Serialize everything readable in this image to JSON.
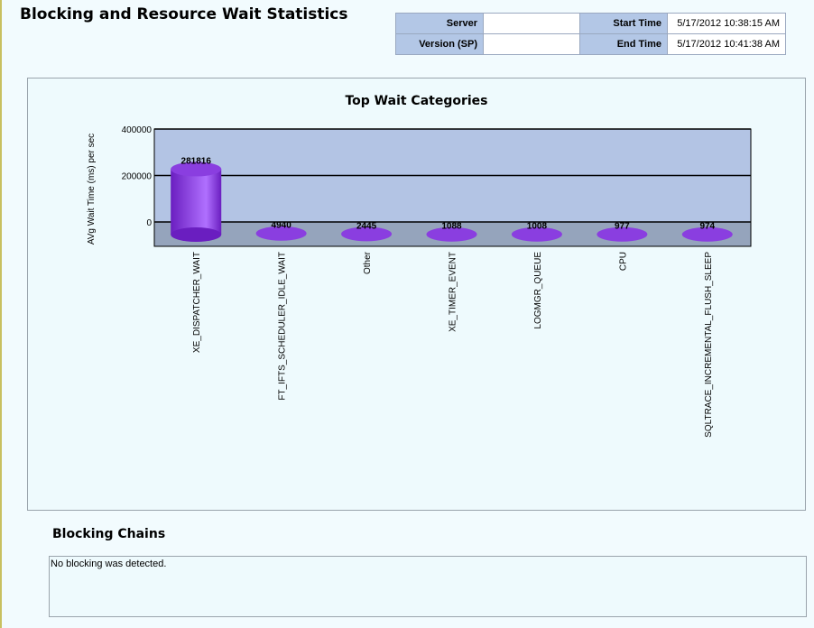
{
  "report": {
    "title": "Blocking and Resource Wait Statistics"
  },
  "info_table": {
    "server_label": "Server",
    "server_value": "",
    "version_label": "Version (SP)",
    "version_value": "",
    "start_label": "Start Time",
    "start_value": "5/17/2012 10:38:15 AM",
    "end_label": "End Time",
    "end_value": "5/17/2012 10:41:38 AM"
  },
  "chart_data": {
    "type": "bar",
    "title": "Top Wait Categories",
    "ylabel": "AVg Wait Time (ms) per sec",
    "xlabel": "",
    "categories": [
      "XE_DISPATCHER_WAIT",
      "FT_IFTS_SCHEDULER_IDLE_WAIT",
      "Other",
      "XE_TIMER_EVENT",
      "LOGMGR_QUEUE",
      "CPU",
      "SQLTRACE_INCREMENTAL_FLUSH_SLEEP"
    ],
    "values": [
      281816,
      4940,
      2445,
      1088,
      1008,
      977,
      974
    ],
    "data_labels": [
      "281816",
      "4940",
      "2445",
      "1088",
      "1008",
      "977",
      "974"
    ],
    "yticks": [
      0,
      200000,
      400000
    ],
    "ytick_labels": [
      "0",
      "200000",
      "400000"
    ],
    "ylim": [
      0,
      400000
    ],
    "grid": true,
    "legend": "none",
    "colors": {
      "bar": "#8a3ee0",
      "bar_dark": "#6a1ec0",
      "plot_back": "#b3c4e4",
      "plot_floor": "#95a4bc"
    }
  },
  "blocking": {
    "title": "Blocking Chains",
    "message": "No blocking was detected."
  }
}
